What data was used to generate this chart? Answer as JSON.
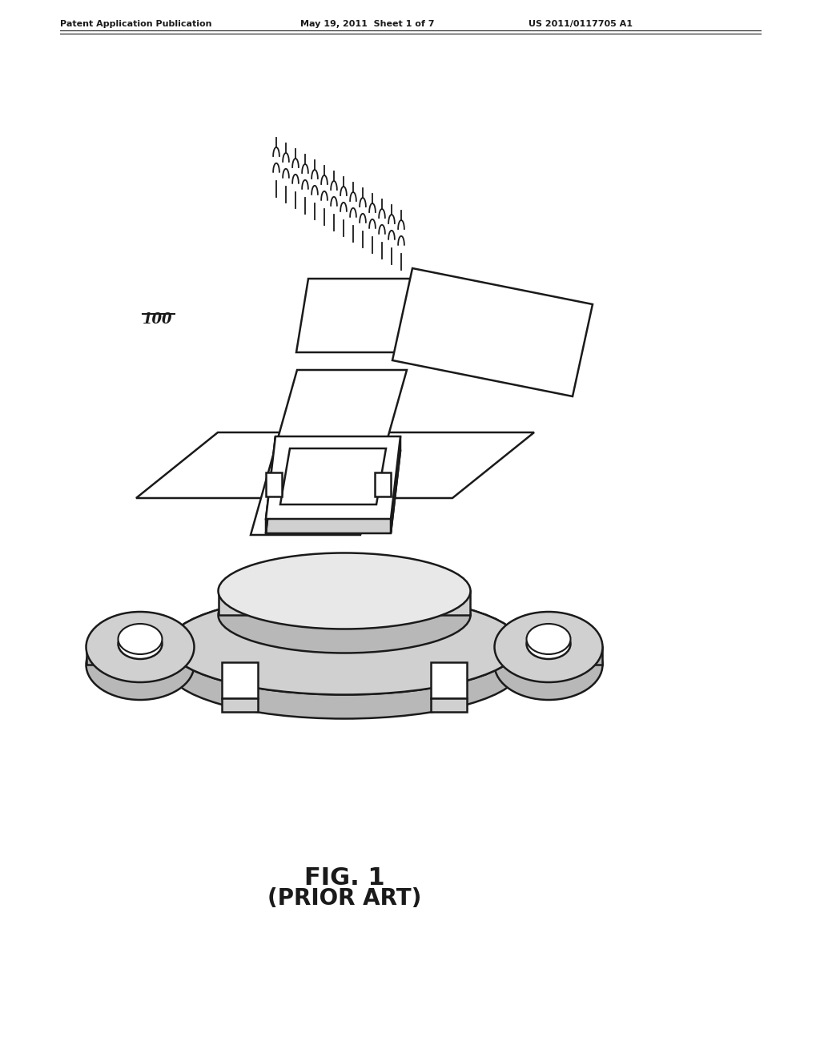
{
  "header_left": "Patent Application Publication",
  "header_center": "May 19, 2011  Sheet 1 of 7",
  "header_right": "US 2011/0117705 A1",
  "label_100": "100",
  "fig_label": "FIG. 1",
  "fig_sublabel": "(PRIOR ART)",
  "bg_color": "#ffffff",
  "line_color": "#1a1a1a",
  "gray1": "#e8e8e8",
  "gray2": "#d0d0d0",
  "gray3": "#b8b8b8"
}
